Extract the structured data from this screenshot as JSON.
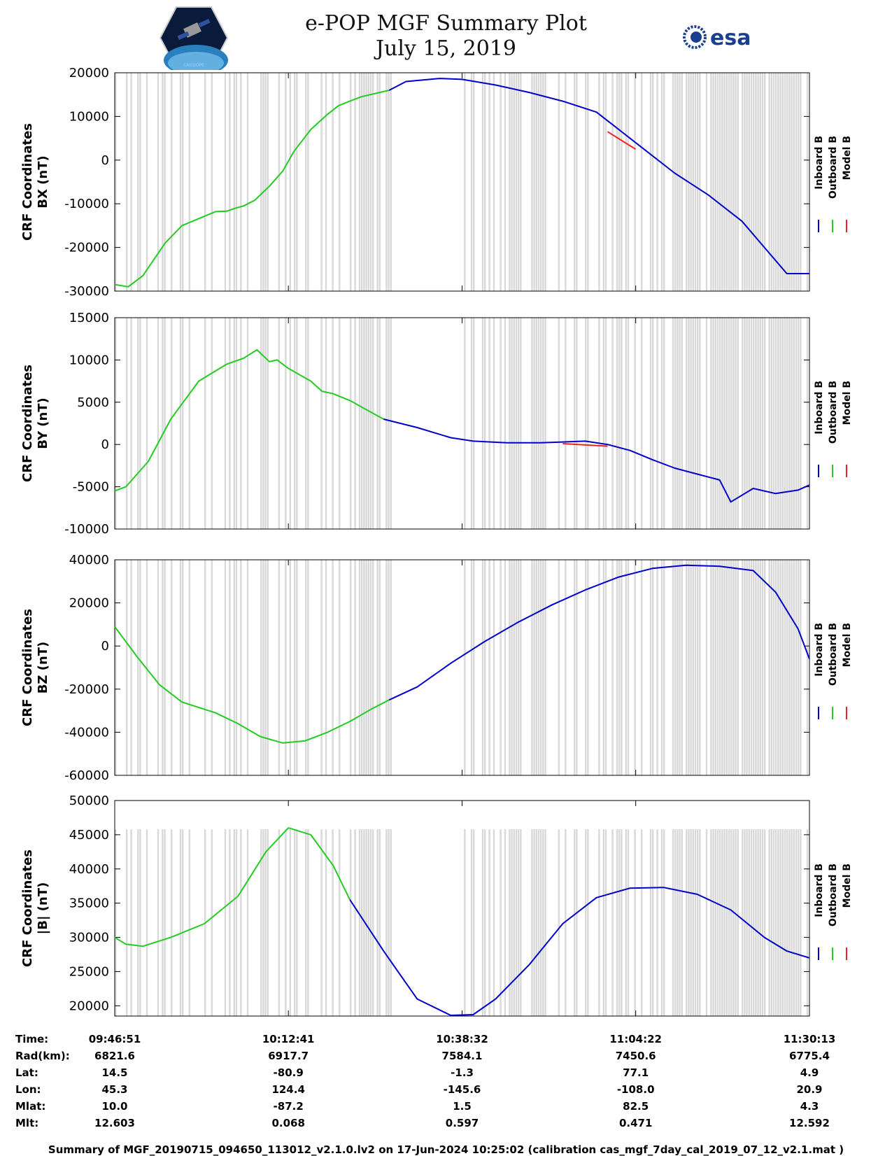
{
  "header": {
    "title_line1": "e-POP MGF Summary Plot",
    "title_line2": "July 15, 2019",
    "logo_left": "CASSIOPE",
    "logo_right": "esa"
  },
  "colors": {
    "inboard": "#0000cc",
    "outboard": "#22cc22",
    "model": "#ee2222",
    "gap": "#d9d9d9"
  },
  "legend_labels": [
    "Inboard B",
    "Outboard B",
    "Model B"
  ],
  "chart_data": [
    {
      "type": "line",
      "title": "",
      "ylabel": [
        "CRF Coordinates",
        "BX (nT)"
      ],
      "ylim": [
        -30000,
        20000
      ],
      "yticks": [
        20000,
        10000,
        0,
        -10000,
        -20000,
        -30000
      ],
      "ytick_labels": [
        "20000",
        "10000",
        "0",
        "-10000",
        "-20000",
        "-30000"
      ],
      "x_range_seconds": [
        0,
        6202
      ],
      "series": [
        {
          "name": "Outboard B",
          "x": [
            0,
            120,
            250,
            450,
            600,
            900,
            1000,
            1080,
            1150,
            1250,
            1380,
            1500,
            1600,
            1750,
            1900,
            2000,
            2200,
            2450
          ],
          "y": [
            -28500,
            -29000,
            -26500,
            -19000,
            -15000,
            -11800,
            -11700,
            -11000,
            -10500,
            -9200,
            -6000,
            -2500,
            2000,
            7000,
            10500,
            12500,
            14500,
            16000
          ]
        },
        {
          "name": "Inboard B",
          "x": [
            2450,
            2600,
            2900,
            3100,
            3400,
            3700,
            4000,
            4300,
            4500,
            4700,
            5000,
            5300,
            5600,
            5800,
            6000,
            6202
          ],
          "y": [
            16000,
            18000,
            18700,
            18500,
            17200,
            15500,
            13500,
            11000,
            7000,
            3000,
            -3000,
            -8000,
            -14000,
            -20000,
            -26000,
            -26000
          ]
        },
        {
          "name": "Model B",
          "x": [
            4400,
            4650
          ],
          "y": [
            6500,
            2500
          ]
        }
      ]
    },
    {
      "type": "line",
      "title": "",
      "ylabel": [
        "CRF Coordinates",
        "BY (nT)"
      ],
      "ylim": [
        -10000,
        15000
      ],
      "yticks": [
        15000,
        10000,
        5000,
        0,
        -5000,
        -10000
      ],
      "ytick_labels": [
        "15000",
        "10000",
        "5000",
        "0",
        "-5000",
        "-10000"
      ],
      "x_range_seconds": [
        0,
        6202
      ],
      "series": [
        {
          "name": "Outboard B",
          "x": [
            0,
            100,
            300,
            500,
            750,
            1000,
            1150,
            1270,
            1380,
            1450,
            1550,
            1750,
            1850,
            1950,
            2100,
            2400
          ],
          "y": [
            -5500,
            -5000,
            -2000,
            3000,
            7500,
            9500,
            10200,
            11200,
            9800,
            10000,
            9000,
            7500,
            6300,
            6000,
            5200,
            3000
          ]
        },
        {
          "name": "Inboard B",
          "x": [
            2400,
            2700,
            3000,
            3200,
            3500,
            3800,
            4000,
            4200,
            4400,
            4600,
            4800,
            5000,
            5200,
            5400,
            5500,
            5700,
            5900,
            6100,
            6202
          ],
          "y": [
            3000,
            2000,
            800,
            400,
            200,
            200,
            300,
            400,
            0,
            -700,
            -1800,
            -2800,
            -3500,
            -4200,
            -6800,
            -5200,
            -5800,
            -5400,
            -4800
          ]
        },
        {
          "name": "Model B",
          "x": [
            4000,
            4400
          ],
          "y": [
            100,
            -200
          ]
        }
      ]
    },
    {
      "type": "line",
      "title": "",
      "ylabel": [
        "CRF Coordinates",
        "BZ (nT)"
      ],
      "ylim": [
        -60000,
        40000
      ],
      "yticks": [
        40000,
        20000,
        0,
        -20000,
        -40000,
        -60000
      ],
      "ytick_labels": [
        "40000",
        "20000",
        "0",
        "-20000",
        "-40000",
        "-60000"
      ],
      "x_range_seconds": [
        0,
        6202
      ],
      "series": [
        {
          "name": "Outboard B",
          "x": [
            0,
            200,
            400,
            600,
            900,
            1100,
            1300,
            1500,
            1700,
            1900,
            2100,
            2300,
            2450
          ],
          "y": [
            9000,
            -5000,
            -18000,
            -26000,
            -31000,
            -36000,
            -42000,
            -45000,
            -44000,
            -40000,
            -35000,
            -29000,
            -25000
          ]
        },
        {
          "name": "Inboard B",
          "x": [
            2450,
            2700,
            3000,
            3300,
            3600,
            3900,
            4200,
            4500,
            4800,
            5100,
            5400,
            5700,
            5900,
            6100,
            6202
          ],
          "y": [
            -25000,
            -19000,
            -8000,
            2000,
            11000,
            19000,
            26000,
            32000,
            36000,
            37500,
            37000,
            35000,
            25000,
            8000,
            -6000
          ]
        }
      ]
    },
    {
      "type": "line",
      "title": "",
      "ylabel": [
        "CRF Coordinates",
        "|B| (nT)"
      ],
      "ylim": [
        18500,
        50000
      ],
      "yticks": [
        50000,
        45000,
        40000,
        35000,
        30000,
        25000,
        20000
      ],
      "ytick_labels": [
        "50000",
        "45000",
        "40000",
        "35000",
        "30000",
        "25000",
        "20000"
      ],
      "x_range_seconds": [
        0,
        6202
      ],
      "series": [
        {
          "name": "Outboard B",
          "x": [
            0,
            100,
            250,
            500,
            800,
            1100,
            1350,
            1550,
            1750,
            1950,
            2100
          ],
          "y": [
            30000,
            29000,
            28700,
            30000,
            32000,
            36000,
            42500,
            46000,
            45000,
            40500,
            35500
          ]
        },
        {
          "name": "Inboard B",
          "x": [
            2100,
            2400,
            2700,
            3000,
            3200,
            3400,
            3700,
            4000,
            4300,
            4600,
            4900,
            5200,
            5500,
            5800,
            6000,
            6202
          ],
          "y": [
            35500,
            28000,
            21000,
            18600,
            18700,
            21000,
            26000,
            32000,
            35800,
            37200,
            37300,
            36300,
            34000,
            30000,
            28000,
            27000
          ]
        }
      ]
    }
  ],
  "x_axis": {
    "ticks_seconds": [
      0,
      1550,
      3101,
      4651,
      6202
    ],
    "info_labels": [
      "Time:",
      "Rad(km):",
      "Lat:",
      "Lon:",
      "Mlat:",
      "Mlt:"
    ],
    "columns": [
      [
        "09:46:51",
        "6821.6",
        "14.5",
        "45.3",
        "10.0",
        "12.603"
      ],
      [
        "10:12:41",
        "6917.7",
        "-80.9",
        "124.4",
        "-87.2",
        "0.068"
      ],
      [
        "10:38:32",
        "7584.1",
        "-1.3",
        "-145.6",
        "1.5",
        "0.597"
      ],
      [
        "11:04:22",
        "7450.6",
        "77.1",
        "-108.0",
        "82.5",
        "0.471"
      ],
      [
        "11:30:13",
        "6775.4",
        "4.9",
        "20.9",
        "4.3",
        "12.592"
      ]
    ]
  },
  "footer": "Summary of MGF_20190715_094650_113012_v2.1.0.lv2 on 17-Jun-2024 10:25:02 (calibration cas_mgf_7day_cal_2019_07_12_v2.1.mat )"
}
